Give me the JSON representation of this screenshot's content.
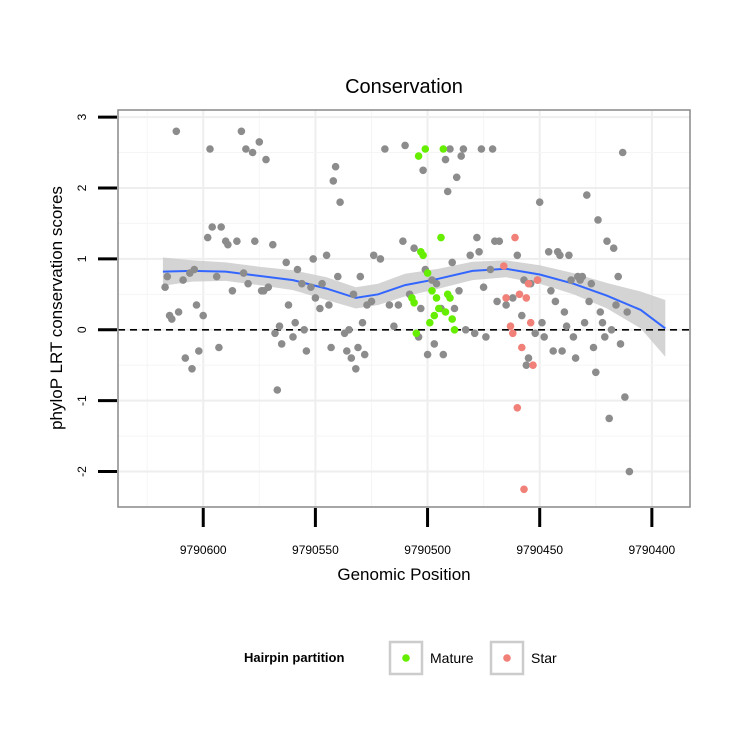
{
  "chart_data": {
    "type": "scatter",
    "title": "Conservation",
    "xlabel": "Genomic Position",
    "ylabel": "phyloP LRT conservation scores",
    "x_reversed": true,
    "xlim": [
      9790383,
      9790638
    ],
    "ylim": [
      -2.5,
      3.1
    ],
    "x_ticks": [
      9790600,
      9790550,
      9790500,
      9790450,
      9790400
    ],
    "x_tick_labels": [
      "9790600",
      "9790550",
      "9790500",
      "9790450",
      "9790400"
    ],
    "y_ticks": [
      3,
      2,
      1,
      0,
      -1,
      -2
    ],
    "y_tick_labels": [
      "3",
      "2",
      "1",
      "0",
      "-1",
      "-2"
    ],
    "reference_line": {
      "y": 0,
      "style": "dashed",
      "color": "#000000"
    },
    "grid": true,
    "legend": {
      "title": "Hairpin partition",
      "placement": "bottom",
      "entries": [
        {
          "label": "Mature",
          "color": "#66ee00"
        },
        {
          "label": "Star",
          "color": "#f08078"
        }
      ]
    },
    "series": [
      {
        "color": "#8c8c8c",
        "points": [
          [
            9790617,
            0.6
          ],
          [
            9790616,
            0.75
          ],
          [
            9790615,
            0.2
          ],
          [
            9790614,
            0.15
          ],
          [
            9790612,
            2.8
          ],
          [
            9790611,
            0.25
          ],
          [
            9790609,
            0.7
          ],
          [
            9790608,
            -0.4
          ],
          [
            9790606,
            0.8
          ],
          [
            9790605,
            -0.55
          ],
          [
            9790604,
            0.85
          ],
          [
            9790603,
            0.35
          ],
          [
            9790602,
            -0.3
          ],
          [
            9790600,
            0.2
          ],
          [
            9790598,
            1.3
          ],
          [
            9790597,
            2.55
          ],
          [
            9790596,
            1.45
          ],
          [
            9790594,
            0.75
          ],
          [
            9790593,
            -0.25
          ],
          [
            9790592,
            1.45
          ],
          [
            9790590,
            1.25
          ],
          [
            9790589,
            1.2
          ],
          [
            9790587,
            0.55
          ],
          [
            9790585,
            1.25
          ],
          [
            9790583,
            2.8
          ],
          [
            9790582,
            0.8
          ],
          [
            9790581,
            2.55
          ],
          [
            9790580,
            0.65
          ],
          [
            9790578,
            2.5
          ],
          [
            9790577,
            1.25
          ],
          [
            9790575,
            2.65
          ],
          [
            9790574,
            0.55
          ],
          [
            9790573,
            0.55
          ],
          [
            9790572,
            2.4
          ],
          [
            9790571,
            0.6
          ],
          [
            9790569,
            1.2
          ],
          [
            9790568,
            -0.05
          ],
          [
            9790567,
            -0.85
          ],
          [
            9790566,
            0.05
          ],
          [
            9790565,
            -0.2
          ],
          [
            9790563,
            0.95
          ],
          [
            9790562,
            0.35
          ],
          [
            9790560,
            -0.1
          ],
          [
            9790559,
            0.1
          ],
          [
            9790558,
            0.85
          ],
          [
            9790556,
            0.65
          ],
          [
            9790555,
            0.0
          ],
          [
            9790554,
            -0.3
          ],
          [
            9790552,
            0.6
          ],
          [
            9790551,
            1.0
          ],
          [
            9790550,
            0.45
          ],
          [
            9790548,
            0.3
          ],
          [
            9790547,
            0.65
          ],
          [
            9790545,
            1.05
          ],
          [
            9790544,
            0.35
          ],
          [
            9790543,
            -0.25
          ],
          [
            9790542,
            2.1
          ],
          [
            9790541,
            2.3
          ],
          [
            9790540,
            0.75
          ],
          [
            9790539,
            1.8
          ],
          [
            9790537,
            -0.05
          ],
          [
            9790536,
            -0.3
          ],
          [
            9790535,
            0.0
          ],
          [
            9790534,
            -0.4
          ],
          [
            9790533,
            0.5
          ],
          [
            9790532,
            -0.55
          ],
          [
            9790531,
            -0.25
          ],
          [
            9790530,
            0.75
          ],
          [
            9790529,
            0.1
          ],
          [
            9790528,
            -0.35
          ],
          [
            9790527,
            0.35
          ],
          [
            9790525,
            0.4
          ],
          [
            9790524,
            1.05
          ],
          [
            9790521,
            1.0
          ],
          [
            9790519,
            2.55
          ],
          [
            9790517,
            0.35
          ],
          [
            9790515,
            0.05
          ],
          [
            9790513,
            0.35
          ],
          [
            9790511,
            1.25
          ],
          [
            9790510,
            2.6
          ],
          [
            9790508,
            0.5
          ],
          [
            9790506,
            1.15
          ],
          [
            9790504,
            -0.1
          ],
          [
            9790503,
            0.3
          ],
          [
            9790502,
            2.25
          ],
          [
            9790501,
            0.85
          ],
          [
            9790500,
            -0.35
          ],
          [
            9790498,
            0.7
          ],
          [
            9790497,
            -0.2
          ],
          [
            9790496,
            0.65
          ],
          [
            9790494,
            0.3
          ],
          [
            9790493,
            -0.35
          ],
          [
            9790492,
            2.4
          ],
          [
            9790491,
            1.95
          ],
          [
            9790490,
            2.55
          ],
          [
            9790489,
            0.95
          ],
          [
            9790488,
            0.3
          ],
          [
            9790487,
            2.15
          ],
          [
            9790486,
            0.55
          ],
          [
            9790485,
            2.45
          ],
          [
            9790484,
            2.55
          ],
          [
            9790483,
            0.0
          ],
          [
            9790481,
            1.05
          ],
          [
            9790479,
            -0.05
          ],
          [
            9790478,
            1.3
          ],
          [
            9790477,
            1.1
          ],
          [
            9790476,
            2.55
          ],
          [
            9790475,
            0.6
          ],
          [
            9790474,
            -0.1
          ],
          [
            9790472,
            0.85
          ],
          [
            9790471,
            2.55
          ],
          [
            9790470,
            1.25
          ],
          [
            9790469,
            0.4
          ],
          [
            9790468,
            1.25
          ],
          [
            9790465,
            0.35
          ],
          [
            9790462,
            0.45
          ],
          [
            9790460,
            1.05
          ],
          [
            9790458,
            0.2
          ],
          [
            9790457,
            0.7
          ],
          [
            9790456,
            -0.5
          ],
          [
            9790455,
            -0.4
          ],
          [
            9790454,
            0.65
          ],
          [
            9790452,
            -0.05
          ],
          [
            9790451,
            0.7
          ],
          [
            9790450,
            1.8
          ],
          [
            9790449,
            0.1
          ],
          [
            9790448,
            -0.1
          ],
          [
            9790446,
            1.1
          ],
          [
            9790445,
            0.55
          ],
          [
            9790444,
            -0.3
          ],
          [
            9790443,
            0.4
          ],
          [
            9790442,
            1.1
          ],
          [
            9790441,
            1.05
          ],
          [
            9790440,
            -0.3
          ],
          [
            9790439,
            0.25
          ],
          [
            9790438,
            0.05
          ],
          [
            9790437,
            1.05
          ],
          [
            9790436,
            0.7
          ],
          [
            9790435,
            -0.1
          ],
          [
            9790434,
            -0.4
          ],
          [
            9790433,
            0.75
          ],
          [
            9790432,
            0.7
          ],
          [
            9790431,
            0.75
          ],
          [
            9790430,
            0.1
          ],
          [
            9790429,
            1.9
          ],
          [
            9790428,
            0.4
          ],
          [
            9790427,
            0.65
          ],
          [
            9790426,
            -0.25
          ],
          [
            9790425,
            -0.6
          ],
          [
            9790424,
            1.55
          ],
          [
            9790423,
            0.25
          ],
          [
            9790422,
            0.1
          ],
          [
            9790421,
            -0.1
          ],
          [
            9790420,
            1.25
          ],
          [
            9790419,
            -1.25
          ],
          [
            9790418,
            0.0
          ],
          [
            9790417,
            1.15
          ],
          [
            9790416,
            0.35
          ],
          [
            9790415,
            0.75
          ],
          [
            9790414,
            -0.2
          ],
          [
            9790413,
            2.5
          ],
          [
            9790412,
            -0.95
          ],
          [
            9790411,
            0.25
          ],
          [
            9790410,
            -2.0
          ]
        ]
      },
      {
        "name": "Mature",
        "color": "#66ee00",
        "points": [
          [
            9790507,
            0.45
          ],
          [
            9790506,
            0.38
          ],
          [
            9790505,
            -0.05
          ],
          [
            9790504,
            2.45
          ],
          [
            9790503,
            1.1
          ],
          [
            9790502,
            1.05
          ],
          [
            9790501,
            2.55
          ],
          [
            9790500,
            0.8
          ],
          [
            9790499,
            0.1
          ],
          [
            9790498,
            0.55
          ],
          [
            9790497,
            0.2
          ],
          [
            9790496,
            0.45
          ],
          [
            9790495,
            0.3
          ],
          [
            9790494,
            1.3
          ],
          [
            9790493,
            2.55
          ],
          [
            9790492,
            0.25
          ],
          [
            9790491,
            0.5
          ],
          [
            9790490,
            0.45
          ],
          [
            9790489,
            0.15
          ],
          [
            9790488,
            0.0
          ]
        ]
      },
      {
        "name": "Star",
        "color": "#f08078",
        "points": [
          [
            9790466,
            0.9
          ],
          [
            9790465,
            0.45
          ],
          [
            9790463,
            0.05
          ],
          [
            9790462,
            -0.05
          ],
          [
            9790461,
            1.3
          ],
          [
            9790460,
            -1.1
          ],
          [
            9790459,
            0.5
          ],
          [
            9790458,
            -0.25
          ],
          [
            9790457,
            -2.25
          ],
          [
            9790456,
            0.45
          ],
          [
            9790455,
            0.65
          ],
          [
            9790454,
            0.1
          ],
          [
            9790453,
            -0.5
          ],
          [
            9790451,
            0.7
          ]
        ]
      }
    ],
    "smooth": {
      "color": "#3366ff",
      "band_color": "#cccccc",
      "points": [
        [
          9790618,
          0.82,
          0.62,
          1.02
        ],
        [
          9790605,
          0.83,
          0.68,
          0.98
        ],
        [
          9790590,
          0.82,
          0.69,
          0.95
        ],
        [
          9790575,
          0.76,
          0.63,
          0.89
        ],
        [
          9790560,
          0.7,
          0.56,
          0.84
        ],
        [
          9790545,
          0.58,
          0.42,
          0.74
        ],
        [
          9790532,
          0.45,
          0.3,
          0.6
        ],
        [
          9790522,
          0.5,
          0.35,
          0.65
        ],
        [
          9790510,
          0.63,
          0.47,
          0.79
        ],
        [
          9790495,
          0.72,
          0.58,
          0.86
        ],
        [
          9790480,
          0.83,
          0.7,
          0.96
        ],
        [
          9790465,
          0.86,
          0.74,
          0.98
        ],
        [
          9790450,
          0.78,
          0.65,
          0.91
        ],
        [
          9790435,
          0.65,
          0.5,
          0.8
        ],
        [
          9790420,
          0.48,
          0.3,
          0.66
        ],
        [
          9790405,
          0.28,
          0.02,
          0.54
        ],
        [
          9790394,
          0.02,
          -0.38,
          0.42
        ]
      ]
    }
  }
}
